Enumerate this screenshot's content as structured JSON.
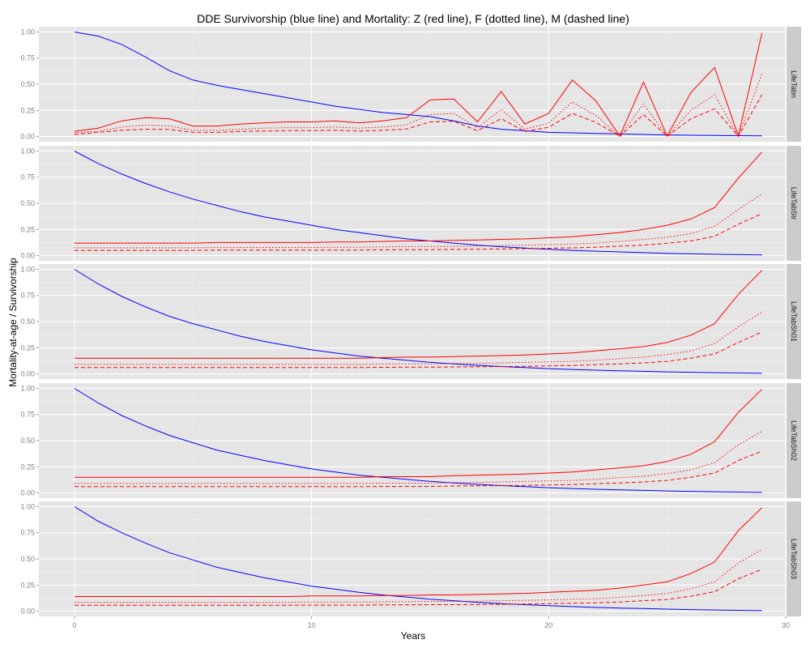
{
  "chart_data": {
    "type": "line",
    "title": "DDE Survivorship (blue line) and Mortality: Z (red line), F (dotted line), M (dashed line)",
    "xlabel": "Years",
    "ylabel": "Mortality-at-age / Survivorship",
    "xlim": [
      -1.5,
      30
    ],
    "ylim": [
      -0.05,
      1.05
    ],
    "x_ticks": [
      0,
      10,
      20,
      30
    ],
    "x_tick_labels": [
      "0",
      "10",
      "20",
      "30"
    ],
    "y_ticks": [
      0,
      0.25,
      0.5,
      0.75,
      1.0
    ],
    "y_tick_labels": [
      "0.00",
      "0.25",
      "0.50",
      "0.75",
      "1.00"
    ],
    "grid": true,
    "x": [
      0,
      1,
      2,
      3,
      4,
      5,
      6,
      7,
      8,
      9,
      10,
      11,
      12,
      13,
      14,
      15,
      16,
      17,
      18,
      19,
      20,
      21,
      22,
      23,
      24,
      25,
      26,
      27,
      28,
      29
    ],
    "series_styles": [
      {
        "key": "survivorship",
        "color": "#0000ff",
        "dash": "solid"
      },
      {
        "key": "Z",
        "color": "#ff0000",
        "dash": "solid"
      },
      {
        "key": "F",
        "color": "#ff0000",
        "dash": "dotted"
      },
      {
        "key": "M",
        "color": "#ff0000",
        "dash": "dashed"
      }
    ],
    "panels": [
      {
        "label": "LifeTabn",
        "series": {
          "survivorship": [
            1.0,
            0.96,
            0.88,
            0.76,
            0.63,
            0.54,
            0.49,
            0.45,
            0.41,
            0.37,
            0.33,
            0.29,
            0.26,
            0.23,
            0.21,
            0.19,
            0.15,
            0.1,
            0.07,
            0.055,
            0.04,
            0.035,
            0.03,
            0.025,
            0.02,
            0.015,
            0.012,
            0.01,
            0.008,
            0.006
          ],
          "Z": [
            0.05,
            0.08,
            0.15,
            0.18,
            0.17,
            0.1,
            0.1,
            0.12,
            0.13,
            0.14,
            0.14,
            0.15,
            0.13,
            0.15,
            0.18,
            0.35,
            0.36,
            0.14,
            0.43,
            0.12,
            0.22,
            0.54,
            0.34,
            0.005,
            0.52,
            0.005,
            0.42,
            0.66,
            0.005,
            0.99
          ],
          "F": [
            0.035,
            0.05,
            0.09,
            0.11,
            0.1,
            0.06,
            0.06,
            0.07,
            0.08,
            0.085,
            0.085,
            0.09,
            0.08,
            0.09,
            0.11,
            0.21,
            0.22,
            0.085,
            0.26,
            0.07,
            0.13,
            0.33,
            0.2,
            0.003,
            0.31,
            0.003,
            0.25,
            0.4,
            0.003,
            0.6
          ],
          "M": [
            0.02,
            0.04,
            0.06,
            0.07,
            0.068,
            0.04,
            0.04,
            0.048,
            0.052,
            0.056,
            0.056,
            0.06,
            0.052,
            0.06,
            0.072,
            0.14,
            0.145,
            0.056,
            0.17,
            0.048,
            0.088,
            0.22,
            0.135,
            0.002,
            0.21,
            0.002,
            0.17,
            0.265,
            0.002,
            0.4
          ]
        }
      },
      {
        "label": "LifeTabStr",
        "series": {
          "survivorship": [
            1.0,
            0.88,
            0.78,
            0.69,
            0.61,
            0.54,
            0.48,
            0.42,
            0.37,
            0.33,
            0.29,
            0.25,
            0.22,
            0.19,
            0.16,
            0.14,
            0.12,
            0.1,
            0.085,
            0.072,
            0.06,
            0.05,
            0.042,
            0.035,
            0.028,
            0.022,
            0.017,
            0.013,
            0.009,
            0.006
          ],
          "Z": [
            0.12,
            0.12,
            0.12,
            0.12,
            0.12,
            0.12,
            0.125,
            0.125,
            0.125,
            0.125,
            0.125,
            0.13,
            0.13,
            0.135,
            0.14,
            0.14,
            0.145,
            0.15,
            0.155,
            0.16,
            0.17,
            0.18,
            0.2,
            0.22,
            0.25,
            0.29,
            0.35,
            0.46,
            0.74,
            0.99
          ],
          "F": [
            0.075,
            0.075,
            0.075,
            0.075,
            0.075,
            0.075,
            0.078,
            0.078,
            0.078,
            0.078,
            0.078,
            0.08,
            0.08,
            0.083,
            0.086,
            0.086,
            0.089,
            0.092,
            0.095,
            0.1,
            0.105,
            0.11,
            0.12,
            0.135,
            0.155,
            0.175,
            0.21,
            0.28,
            0.44,
            0.59
          ],
          "M": [
            0.05,
            0.05,
            0.05,
            0.05,
            0.05,
            0.05,
            0.052,
            0.052,
            0.052,
            0.052,
            0.052,
            0.053,
            0.053,
            0.055,
            0.057,
            0.057,
            0.059,
            0.061,
            0.063,
            0.066,
            0.07,
            0.074,
            0.08,
            0.09,
            0.1,
            0.118,
            0.14,
            0.185,
            0.3,
            0.4
          ]
        }
      },
      {
        "label": "LifeTabSh01",
        "series": {
          "survivorship": [
            1.0,
            0.86,
            0.74,
            0.64,
            0.55,
            0.48,
            0.42,
            0.36,
            0.31,
            0.27,
            0.23,
            0.2,
            0.17,
            0.15,
            0.13,
            0.11,
            0.095,
            0.082,
            0.07,
            0.06,
            0.05,
            0.042,
            0.035,
            0.029,
            0.024,
            0.019,
            0.015,
            0.011,
            0.008,
            0.005
          ],
          "Z": [
            0.15,
            0.15,
            0.15,
            0.15,
            0.15,
            0.15,
            0.15,
            0.15,
            0.15,
            0.15,
            0.15,
            0.15,
            0.15,
            0.155,
            0.16,
            0.16,
            0.165,
            0.17,
            0.175,
            0.18,
            0.19,
            0.2,
            0.22,
            0.24,
            0.26,
            0.3,
            0.37,
            0.48,
            0.76,
            0.99
          ],
          "F": [
            0.09,
            0.09,
            0.09,
            0.09,
            0.09,
            0.09,
            0.09,
            0.09,
            0.09,
            0.09,
            0.09,
            0.09,
            0.09,
            0.093,
            0.096,
            0.096,
            0.099,
            0.1,
            0.105,
            0.11,
            0.115,
            0.12,
            0.13,
            0.145,
            0.16,
            0.185,
            0.22,
            0.29,
            0.45,
            0.59
          ],
          "M": [
            0.06,
            0.06,
            0.06,
            0.06,
            0.06,
            0.06,
            0.06,
            0.06,
            0.06,
            0.06,
            0.06,
            0.06,
            0.06,
            0.062,
            0.064,
            0.064,
            0.066,
            0.068,
            0.07,
            0.072,
            0.076,
            0.08,
            0.088,
            0.096,
            0.105,
            0.12,
            0.15,
            0.19,
            0.3,
            0.4
          ]
        }
      },
      {
        "label": "LifeTabSh02",
        "series": {
          "survivorship": [
            1.0,
            0.86,
            0.74,
            0.64,
            0.55,
            0.48,
            0.41,
            0.36,
            0.31,
            0.27,
            0.23,
            0.2,
            0.17,
            0.15,
            0.13,
            0.11,
            0.095,
            0.082,
            0.07,
            0.06,
            0.05,
            0.042,
            0.035,
            0.029,
            0.024,
            0.019,
            0.015,
            0.011,
            0.008,
            0.005
          ],
          "Z": [
            0.15,
            0.15,
            0.15,
            0.15,
            0.15,
            0.15,
            0.15,
            0.15,
            0.15,
            0.15,
            0.15,
            0.15,
            0.15,
            0.155,
            0.155,
            0.155,
            0.165,
            0.17,
            0.175,
            0.18,
            0.19,
            0.2,
            0.22,
            0.24,
            0.26,
            0.3,
            0.37,
            0.49,
            0.77,
            0.99
          ],
          "F": [
            0.09,
            0.09,
            0.09,
            0.09,
            0.09,
            0.09,
            0.09,
            0.09,
            0.09,
            0.09,
            0.09,
            0.09,
            0.09,
            0.093,
            0.093,
            0.093,
            0.099,
            0.1,
            0.105,
            0.11,
            0.115,
            0.12,
            0.13,
            0.145,
            0.16,
            0.185,
            0.22,
            0.29,
            0.46,
            0.59
          ],
          "M": [
            0.06,
            0.06,
            0.06,
            0.06,
            0.06,
            0.06,
            0.06,
            0.06,
            0.06,
            0.06,
            0.06,
            0.06,
            0.06,
            0.062,
            0.062,
            0.062,
            0.066,
            0.068,
            0.07,
            0.072,
            0.076,
            0.08,
            0.088,
            0.096,
            0.105,
            0.12,
            0.15,
            0.19,
            0.31,
            0.4
          ]
        }
      },
      {
        "label": "LifeTabSh03",
        "series": {
          "survivorship": [
            1.0,
            0.86,
            0.75,
            0.65,
            0.56,
            0.49,
            0.42,
            0.37,
            0.32,
            0.28,
            0.24,
            0.21,
            0.18,
            0.155,
            0.135,
            0.115,
            0.1,
            0.085,
            0.072,
            0.062,
            0.052,
            0.044,
            0.036,
            0.03,
            0.025,
            0.02,
            0.015,
            0.011,
            0.008,
            0.005
          ],
          "Z": [
            0.14,
            0.14,
            0.14,
            0.14,
            0.14,
            0.14,
            0.14,
            0.14,
            0.14,
            0.14,
            0.145,
            0.145,
            0.145,
            0.15,
            0.15,
            0.155,
            0.155,
            0.16,
            0.165,
            0.17,
            0.18,
            0.19,
            0.2,
            0.22,
            0.25,
            0.28,
            0.36,
            0.47,
            0.77,
            0.99
          ],
          "F": [
            0.085,
            0.085,
            0.085,
            0.085,
            0.085,
            0.085,
            0.085,
            0.085,
            0.085,
            0.085,
            0.087,
            0.087,
            0.087,
            0.09,
            0.09,
            0.093,
            0.093,
            0.096,
            0.1,
            0.103,
            0.108,
            0.115,
            0.12,
            0.132,
            0.15,
            0.17,
            0.215,
            0.28,
            0.46,
            0.59
          ],
          "M": [
            0.057,
            0.057,
            0.057,
            0.057,
            0.057,
            0.057,
            0.057,
            0.057,
            0.057,
            0.057,
            0.058,
            0.058,
            0.058,
            0.06,
            0.06,
            0.062,
            0.062,
            0.064,
            0.066,
            0.068,
            0.072,
            0.076,
            0.08,
            0.088,
            0.1,
            0.112,
            0.143,
            0.187,
            0.31,
            0.4
          ]
        }
      }
    ]
  }
}
